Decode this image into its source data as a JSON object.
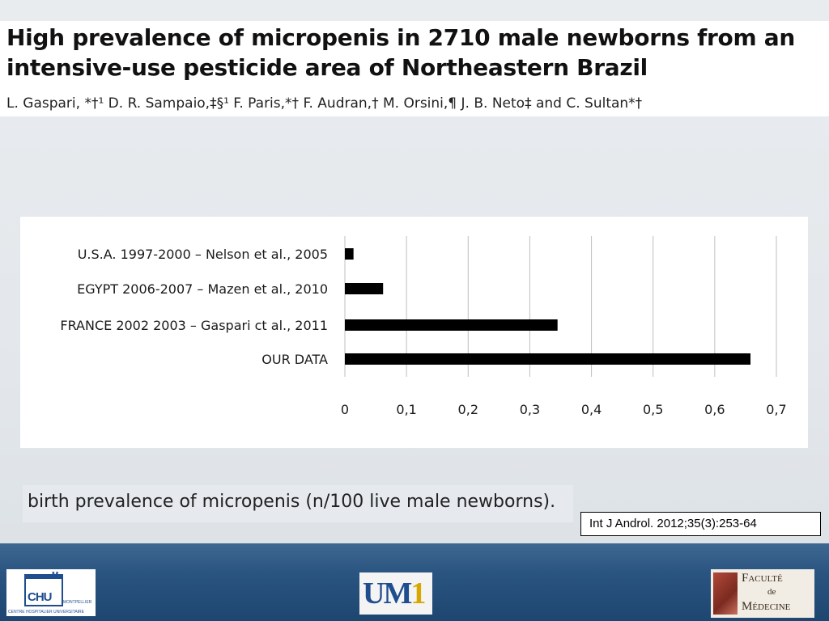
{
  "slide": {
    "title": "High prevalence of micropenis in 2710 male newborns from an intensive-use pesticide area of Northeastern Brazil",
    "authors": "L. Gaspari, *†¹ D. R. Sampaio,‡§¹ F. Paris,*† F. Audran,† M. Orsini,¶ J. B. Neto‡ and C. Sultan*†",
    "x_axis_caption": "birth prevalence of micropenis (n/100 live male newborns).",
    "reference": "Int J Androl. 2012;35(3):253-64"
  },
  "footer": {
    "chu_logo": {
      "letter": "M",
      "text": "CHU",
      "city": "MONTPELLIER",
      "subtitle": "CENTRE HOSPITALIER UNIVERSITAIRE"
    },
    "um1_logo": {
      "text_u": "UM",
      "text_1": "1"
    },
    "faculty_logo": {
      "line1": "Faculté",
      "line2": "de",
      "line3": "Médecine"
    }
  },
  "chart_data": {
    "type": "bar",
    "orientation": "horizontal",
    "categories": [
      "U.S.A. 1997-2000 – Nelson et al., 2005",
      "EGYPT 2006-2007 – Mazen et al., 2010",
      "FRANCE 2002 2003 – Gaspari ct al., 2011",
      "OUR DATA"
    ],
    "values": [
      0.014,
      0.062,
      0.345,
      0.658
    ],
    "xlim": [
      0,
      0.7
    ],
    "xticks": [
      "0",
      "0,1",
      "0,2",
      "0,3",
      "0,4",
      "0,5",
      "0,6",
      "0,7"
    ],
    "xlabel": "birth prevalence of micropenis (n/100 live male newborns).",
    "ylabel": "",
    "grid": "vertical",
    "bar_color": "#000000"
  }
}
